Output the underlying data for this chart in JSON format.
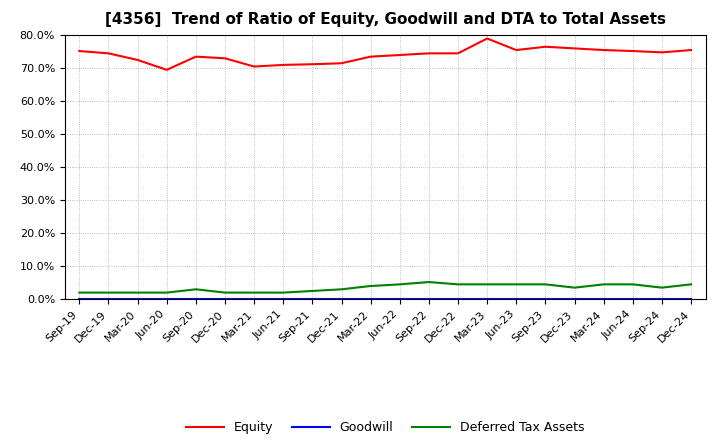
{
  "title": "[4356]  Trend of Ratio of Equity, Goodwill and DTA to Total Assets",
  "x_labels": [
    "Sep-19",
    "Dec-19",
    "Mar-20",
    "Jun-20",
    "Sep-20",
    "Dec-20",
    "Mar-21",
    "Jun-21",
    "Sep-21",
    "Dec-21",
    "Mar-22",
    "Jun-22",
    "Sep-22",
    "Dec-22",
    "Mar-23",
    "Jun-23",
    "Sep-23",
    "Dec-23",
    "Mar-24",
    "Jun-24",
    "Sep-24",
    "Dec-24"
  ],
  "equity": [
    75.2,
    74.5,
    72.5,
    69.5,
    73.5,
    73.0,
    70.5,
    71.0,
    71.2,
    71.5,
    73.5,
    74.0,
    74.5,
    74.5,
    79.0,
    75.5,
    76.5,
    76.0,
    75.5,
    75.2,
    74.8,
    75.5
  ],
  "goodwill": [
    0.0,
    0.0,
    0.0,
    0.0,
    0.0,
    0.0,
    0.0,
    0.0,
    0.0,
    0.0,
    0.0,
    0.0,
    0.0,
    0.0,
    0.0,
    0.0,
    0.0,
    0.0,
    0.0,
    0.0,
    0.0,
    0.0
  ],
  "dta": [
    2.0,
    2.0,
    2.0,
    2.0,
    3.0,
    2.0,
    2.0,
    2.0,
    2.5,
    3.0,
    4.0,
    4.5,
    5.2,
    4.5,
    4.5,
    4.5,
    4.5,
    3.5,
    4.5,
    4.5,
    3.5,
    4.5
  ],
  "equity_color": "#FF0000",
  "goodwill_color": "#0000FF",
  "dta_color": "#008000",
  "bg_color": "#FFFFFF",
  "grid_color": "#AAAAAA",
  "ylim": [
    0,
    80
  ],
  "yticks": [
    0,
    10,
    20,
    30,
    40,
    50,
    60,
    70,
    80
  ],
  "legend_labels": [
    "Equity",
    "Goodwill",
    "Deferred Tax Assets"
  ],
  "title_fontsize": 11,
  "axis_fontsize": 8,
  "legend_fontsize": 9
}
